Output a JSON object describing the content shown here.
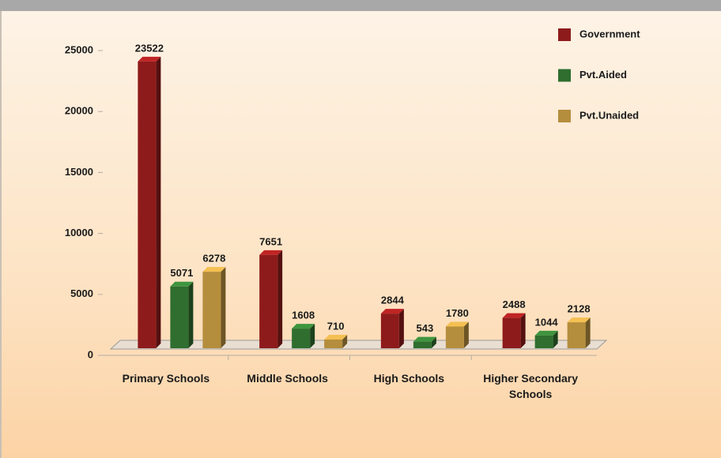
{
  "chart_data": {
    "type": "bar",
    "categories": [
      "Primary Schools",
      "Middle Schools",
      "High Schools",
      "Higher Secondary Schools"
    ],
    "series": [
      {
        "name": "Government",
        "color": "#8e1b1b",
        "values": [
          23522,
          7651,
          2844,
          2488
        ]
      },
      {
        "name": "Pvt.Aided",
        "color": "#2f6e2f",
        "values": [
          5071,
          1608,
          543,
          1044
        ]
      },
      {
        "name": "Pvt.Unaided",
        "color": "#b58e3d",
        "values": [
          6278,
          710,
          1780,
          2128
        ]
      }
    ],
    "ylim": [
      0,
      25000
    ],
    "yticks": [
      0,
      5000,
      10000,
      15000,
      20000,
      25000
    ],
    "grid": false,
    "legend": "top-right"
  }
}
